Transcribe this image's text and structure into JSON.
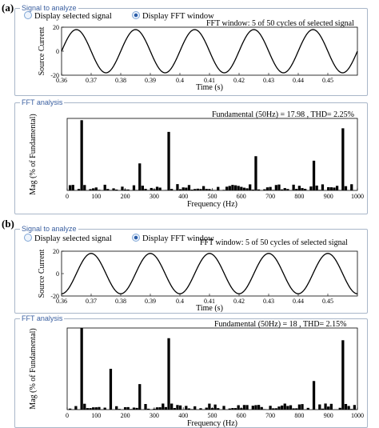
{
  "panels": [
    {
      "label": "(a)",
      "signal_group_title": "Signal to analyze",
      "radio_display_selected": "Display selected signal",
      "radio_display_fft": "Display FFT window",
      "fft_group_title": "FFT analysis",
      "signal_annotation": "FFT window: 5 of 50 cycles of selected signal",
      "fft_annotation": "Fundamental (50Hz) = 17.98 , THD= 2.25%"
    },
    {
      "label": "(b)",
      "signal_group_title": "Signal to analyze",
      "radio_display_selected": "Display selected signal",
      "radio_display_fft": "Display FFT window",
      "fft_group_title": "FFT analysis",
      "signal_annotation": "FFT window: 5 of 50 cycles of selected signal",
      "fft_annotation": "Fundamental (50Hz) = 18 , THD= 2.15%"
    }
  ],
  "chart_data": [
    {
      "type": "line",
      "panel": "(a)",
      "xlabel": "Time (s)",
      "ylabel": "Source Current",
      "xlim": [
        0.36,
        0.46
      ],
      "ylim": [
        -20,
        20
      ],
      "xticks": [
        "0.36",
        "0.37",
        "0.38",
        "0.39",
        "0.4",
        "0.41",
        "0.42",
        "0.43",
        "0.44",
        "0.45"
      ],
      "yticks": [
        "20",
        "0",
        "-20"
      ],
      "series": [
        {
          "frequency_hz": 50,
          "amplitude": 18,
          "phase_deg": 0
        }
      ]
    },
    {
      "type": "bar",
      "panel": "(a)",
      "xlabel": "Frequency (Hz)",
      "ylabel": "Mag (% of Fundamental)",
      "xlim": [
        0,
        1000
      ],
      "ylim": [
        0,
        0.8
      ],
      "xticks": [
        "0",
        "100",
        "200",
        "300",
        "400",
        "500",
        "600",
        "700",
        "800",
        "900",
        "1000"
      ],
      "spikes": [
        {
          "x": 50,
          "y": 0.78
        },
        {
          "x": 250,
          "y": 0.3
        },
        {
          "x": 350,
          "y": 0.65
        },
        {
          "x": 650,
          "y": 0.38
        },
        {
          "x": 850,
          "y": 0.33
        },
        {
          "x": 950,
          "y": 0.69
        }
      ],
      "noise_floor_max": 0.07
    },
    {
      "type": "line",
      "panel": "(b)",
      "xlabel": "Time (s)",
      "ylabel": "Source Current",
      "xlim": [
        0.36,
        0.46
      ],
      "ylim": [
        -20,
        20
      ],
      "xticks": [
        "0.36",
        "0.37",
        "0.38",
        "0.39",
        "0.4",
        "0.41",
        "0.42",
        "0.43",
        "0.44",
        "0.45"
      ],
      "yticks": [
        "20",
        "0",
        "-20"
      ],
      "series": [
        {
          "frequency_hz": 50,
          "amplitude": 18,
          "phase_deg": -90
        }
      ]
    },
    {
      "type": "bar",
      "panel": "(b)",
      "xlabel": "Frequency (Hz)",
      "ylabel": "Mag (% of Fundamental)",
      "xlim": [
        0,
        1000
      ],
      "ylim": [
        0,
        0.8
      ],
      "xticks": [
        "0",
        "100",
        "200",
        "300",
        "400",
        "500",
        "600",
        "700",
        "800",
        "900",
        "1000"
      ],
      "spikes": [
        {
          "x": 50,
          "y": 0.8
        },
        {
          "x": 150,
          "y": 0.4
        },
        {
          "x": 250,
          "y": 0.25
        },
        {
          "x": 350,
          "y": 0.7
        },
        {
          "x": 850,
          "y": 0.28
        },
        {
          "x": 950,
          "y": 0.68
        }
      ],
      "noise_floor_max": 0.06
    }
  ]
}
